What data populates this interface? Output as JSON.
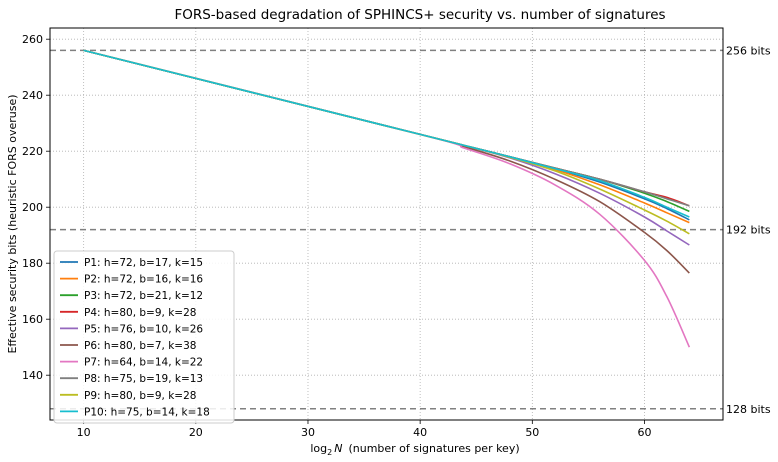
{
  "chart_data": {
    "type": "line",
    "title": "FORS-based degradation of SPHINCS+ security vs. number of signatures",
    "xlabel_main": "log",
    "xlabel_sub": "2",
    "xlabel_var": "N",
    "xlabel_rest": "(number of signatures per key)",
    "ylabel": "Effective security bits (heuristic FORS overuse)",
    "xlim": [
      7,
      67
    ],
    "ylim": [
      124,
      264
    ],
    "xticks": [
      10,
      20,
      30,
      40,
      50,
      60
    ],
    "yticks": [
      140,
      160,
      180,
      200,
      220,
      240,
      260
    ],
    "grid": true,
    "legend_position": "lower-left",
    "reference_lines": [
      {
        "value": 256,
        "label": "256 bits"
      },
      {
        "value": 192,
        "label": "192 bits"
      },
      {
        "value": 128,
        "label": "128 bits"
      }
    ],
    "x": [
      10,
      40,
      44,
      48,
      52,
      56,
      60,
      62,
      64
    ],
    "series": [
      {
        "name": "P1: h=72, b=17, k=15",
        "color": "#1f77b4",
        "values": [
          256,
          226,
          222,
          218,
          213.8,
          209,
          203,
          199.5,
          195.5
        ]
      },
      {
        "name": "P2: h=72, b=16, k=16",
        "color": "#ff7f0e",
        "values": [
          256,
          226,
          222,
          218,
          213.5,
          208,
          201.5,
          198,
          194.5
        ]
      },
      {
        "name": "P3: h=72, b=21, k=12",
        "color": "#2ca02c",
        "values": [
          256,
          226,
          222,
          218,
          214,
          210,
          205,
          202,
          198.5
        ]
      },
      {
        "name": "P4: h=80, b=9, k=28",
        "color": "#d62728",
        "values": [
          256,
          226,
          222,
          218,
          214,
          210,
          205.5,
          203.5,
          200.5
        ]
      },
      {
        "name": "P5: h=76, b=10, k=26",
        "color": "#9467bd",
        "values": [
          256,
          226,
          222,
          217.6,
          212,
          205,
          196.5,
          191.5,
          186.5
        ]
      },
      {
        "name": "P6: h=80, b=7, k=38",
        "color": "#8c564b",
        "values": [
          256,
          226,
          221.5,
          216.5,
          210,
          202,
          191,
          184.5,
          176.5
        ]
      },
      {
        "name": "P7: h=64, b=14, k=22",
        "color": "#e377c2",
        "values": [
          256,
          226,
          221,
          215.5,
          208,
          197.5,
          181,
          168,
          150
        ]
      },
      {
        "name": "P8: h=75, b=19, k=13",
        "color": "#7f7f7f",
        "values": [
          256,
          226,
          222,
          218,
          214,
          210,
          205.5,
          203,
          200.5
        ]
      },
      {
        "name": "P9: h=80, b=9, k=28",
        "color": "#bcbd22",
        "values": [
          256,
          226,
          222,
          217.8,
          213,
          206.5,
          199,
          195,
          190.5
        ]
      },
      {
        "name": "P10: h=75, b=14, k=18",
        "color": "#17becf",
        "values": [
          256,
          226,
          222,
          218,
          213.8,
          209.5,
          203.5,
          200,
          196.5
        ]
      }
    ]
  }
}
